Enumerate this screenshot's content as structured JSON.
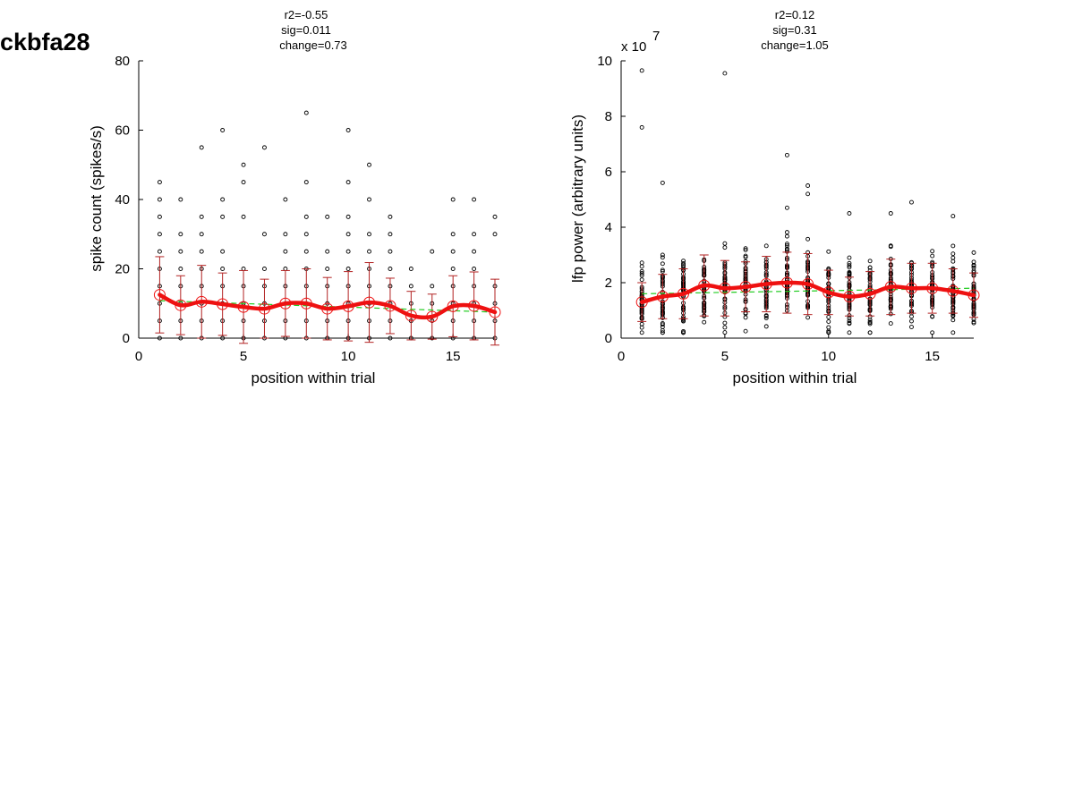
{
  "figure": {
    "label": "ckbfa28"
  },
  "colors": {
    "points": "#000000",
    "mean": "#ee1111",
    "errorbar": "#b22222",
    "fit": "#22cc22"
  },
  "chart_data": [
    {
      "type": "scatter",
      "stats": [
        "r2=-0.55",
        "sig=0.011",
        "change=0.73"
      ],
      "xlabel": "position within trial",
      "ylabel": "spike count (spikes/s)",
      "xlim": [
        0,
        17
      ],
      "ylim": [
        0,
        80
      ],
      "xticks": [
        0,
        5,
        10,
        15
      ],
      "yticks": [
        0,
        20,
        40,
        60,
        80
      ],
      "grid": false,
      "series": [
        {
          "x": [
            1,
            2,
            3,
            4,
            5,
            6,
            7,
            8,
            9,
            10,
            11,
            12,
            13,
            14,
            15,
            16,
            17
          ],
          "y": [
            12.5,
            9.5,
            10.5,
            9.8,
            9.0,
            8.5,
            10.0,
            10.0,
            8.5,
            9.2,
            10.3,
            9.3,
            6.5,
            6.2,
            9.2,
            9.3,
            7.5
          ],
          "err": [
            11.0,
            8.5,
            10.5,
            9.0,
            10.5,
            8.5,
            9.5,
            10.0,
            9.0,
            10.0,
            11.5,
            8.0,
            7.0,
            6.5,
            8.8,
            9.8,
            9.5
          ]
        }
      ],
      "fit": {
        "x": [
          1,
          17
        ],
        "y": [
          10.8,
          7.5
        ]
      },
      "points": [
        [
          1,
          [
            0,
            5,
            10,
            15,
            20,
            25,
            30,
            35,
            40,
            45
          ]
        ],
        [
          2,
          [
            0,
            5,
            10,
            15,
            20,
            25,
            30,
            40
          ]
        ],
        [
          3,
          [
            0,
            5,
            10,
            15,
            20,
            25,
            30,
            35,
            55
          ]
        ],
        [
          4,
          [
            0,
            5,
            10,
            15,
            20,
            25,
            35,
            40,
            60
          ]
        ],
        [
          5,
          [
            0,
            5,
            10,
            15,
            20,
            35,
            45,
            50
          ]
        ],
        [
          6,
          [
            0,
            5,
            10,
            15,
            20,
            30,
            55
          ]
        ],
        [
          7,
          [
            0,
            5,
            10,
            15,
            20,
            25,
            30,
            40
          ]
        ],
        [
          8,
          [
            0,
            5,
            10,
            15,
            20,
            25,
            30,
            35,
            45,
            65
          ]
        ],
        [
          9,
          [
            0,
            5,
            10,
            15,
            20,
            25,
            35
          ]
        ],
        [
          10,
          [
            0,
            5,
            10,
            15,
            20,
            25,
            30,
            35,
            45,
            60
          ]
        ],
        [
          11,
          [
            0,
            5,
            10,
            15,
            20,
            25,
            30,
            40,
            50
          ]
        ],
        [
          12,
          [
            0,
            5,
            10,
            15,
            20,
            25,
            30,
            35
          ]
        ],
        [
          13,
          [
            0,
            5,
            10,
            15,
            20
          ]
        ],
        [
          14,
          [
            0,
            5,
            10,
            15,
            25
          ]
        ],
        [
          15,
          [
            0,
            5,
            10,
            15,
            20,
            25,
            30,
            40
          ]
        ],
        [
          16,
          [
            0,
            5,
            10,
            15,
            20,
            25,
            30,
            40
          ]
        ],
        [
          17,
          [
            0,
            5,
            10,
            15,
            30,
            35
          ]
        ]
      ]
    },
    {
      "type": "scatter",
      "stats": [
        "r2=0.12",
        "sig=0.31",
        "change=1.05"
      ],
      "xlabel": "position within trial",
      "ylabel": "lfp power (arbitrary units)",
      "y_multiplier": "x 10",
      "y_multiplier_exponent": "7",
      "xlim": [
        0,
        17
      ],
      "ylim": [
        0,
        10
      ],
      "xticks": [
        0,
        5,
        10,
        15
      ],
      "yticks": [
        0,
        2,
        4,
        6,
        8,
        10
      ],
      "grid": false,
      "series": [
        {
          "x": [
            1,
            2,
            3,
            4,
            5,
            6,
            7,
            8,
            9,
            10,
            11,
            12,
            13,
            14,
            15,
            16,
            17
          ],
          "y": [
            1.3,
            1.5,
            1.6,
            1.9,
            1.8,
            1.85,
            1.95,
            2.0,
            1.95,
            1.65,
            1.5,
            1.6,
            1.85,
            1.8,
            1.8,
            1.7,
            1.55
          ],
          "err": [
            0.7,
            0.8,
            0.9,
            1.1,
            1.0,
            0.9,
            1.0,
            1.1,
            1.1,
            0.8,
            0.7,
            0.8,
            1.0,
            0.9,
            0.9,
            0.8,
            0.8
          ]
        }
      ],
      "fit": {
        "x": [
          1,
          17
        ],
        "y": [
          1.6,
          1.8
        ]
      },
      "extremes": [
        [
          1,
          9.65
        ],
        [
          1,
          7.6
        ],
        [
          2,
          5.6
        ],
        [
          5,
          9.55
        ],
        [
          8,
          6.6
        ],
        [
          8,
          4.7
        ],
        [
          9,
          5.5
        ],
        [
          9,
          5.2
        ],
        [
          11,
          4.5
        ],
        [
          13,
          4.5
        ],
        [
          14,
          4.9
        ],
        [
          16,
          4.4
        ]
      ]
    }
  ]
}
